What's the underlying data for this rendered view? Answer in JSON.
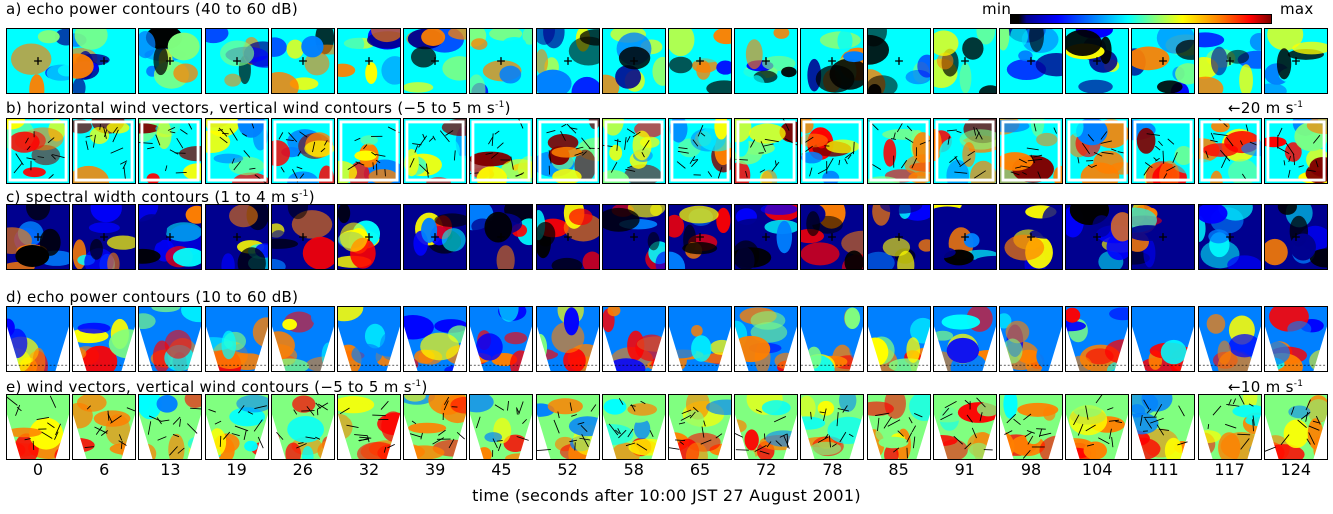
{
  "figure": {
    "panel_labels": {
      "a": "a) echo power contours (40 to 60 dB)",
      "b": "b) horizontal wind vectors, vertical wind contours (−5 to 5 m s",
      "b_sup": "-1",
      "b_end": ")",
      "c": "c) spectral width contours (1 to 4 m s",
      "c_sup": "-1",
      "c_end": ")",
      "d": "d) echo power contours (10 to 60 dB)",
      "e": "e) wind vectors, vertical wind contours (−5 to 5 m s",
      "e_sup": "-1",
      "e_end": ")"
    },
    "colorbar": {
      "min_label": "min",
      "max_label": "max"
    },
    "scale_b": {
      "arrow": "←",
      "text": "20 m s",
      "sup": "-1"
    },
    "scale_e": {
      "arrow": "←",
      "text": "10 m s",
      "sup": "-1"
    },
    "time_ticks": [
      "0",
      "6",
      "13",
      "19",
      "26",
      "32",
      "39",
      "45",
      "52",
      "58",
      "65",
      "72",
      "78",
      "85",
      "91",
      "98",
      "104",
      "111",
      "117",
      "124"
    ],
    "xlabel": "time (seconds after 10:00 JST 27 August 2001)",
    "colors": {
      "dark": "#000000",
      "navy": "#00008f",
      "blue": "#0000ff",
      "sky": "#0080ff",
      "cyan": "#00ffff",
      "green": "#80ff80",
      "yellow": "#ffff00",
      "orange": "#ff8000",
      "red": "#ff0000",
      "maroon": "#800000"
    }
  }
}
